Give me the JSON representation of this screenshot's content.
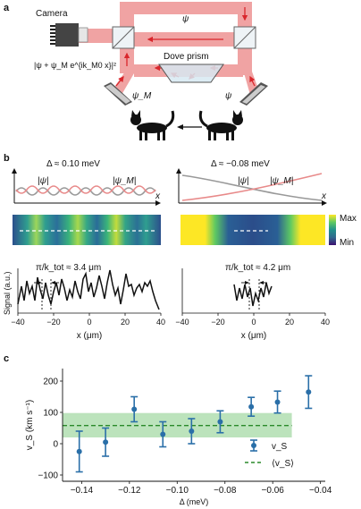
{
  "panel_a": {
    "label": "a",
    "camera_label": "Camera",
    "camera_formula": "|ψ + ψ_M e^{ik_M0 x}|²",
    "psi_label": "ψ",
    "psi_m_label": "ψ_M",
    "dove_prism_label": "Dove prism",
    "colors": {
      "beam": "#f0a3a3",
      "arrow": "#d9262c"
    },
    "icons": [
      "camera-icon",
      "beam-splitter",
      "mirror",
      "dove-prism",
      "cat-left-icon",
      "cat-right-icon"
    ]
  },
  "panel_b": {
    "label": "b",
    "left": {
      "delta_label": "Δ ≈ 0.10 meV",
      "psi_label": "|ψ|",
      "psi_m_label": "|ψ_M|",
      "x_label": "x",
      "annotation": "π/k_tot ≈ 3.4 μm"
    },
    "right": {
      "delta_label": "Δ ≈ −0.08 meV",
      "psi_label": "|ψ|",
      "psi_m_label": "|ψ_M|",
      "x_label": "x",
      "annotation": "π/k_tot ≈ 4.2 μm"
    },
    "colorbar": {
      "max_label": "Max",
      "min_label": "Min"
    },
    "signal_ylabel": "Signal (a.u.)",
    "xlabel": "x (μm)",
    "xticks": [
      "−40",
      "−20",
      "0",
      "20",
      "40"
    ]
  },
  "panel_c": {
    "label": "c",
    "chart_data": {
      "type": "scatter",
      "xlabel": "Δ (meV)",
      "ylabel": "v_S (km s⁻¹)",
      "xlim": [
        -0.148,
        -0.038
      ],
      "ylim": [
        -120,
        240
      ],
      "xticks": [
        -0.14,
        -0.12,
        -0.1,
        -0.08,
        -0.06,
        -0.04
      ],
      "xtick_labels": [
        "−0.14",
        "−0.12",
        "−0.10",
        "−0.08",
        "−0.06",
        "−0.04"
      ],
      "yticks": [
        -100,
        0,
        100,
        200
      ],
      "ytick_labels": [
        "−100",
        "0",
        "100",
        "200"
      ],
      "series": [
        {
          "name": "v_S",
          "color": "#2a6fa8",
          "points": [
            {
              "x": -0.141,
              "y": -25,
              "err": 65
            },
            {
              "x": -0.13,
              "y": 5,
              "err": 45
            },
            {
              "x": -0.118,
              "y": 110,
              "err": 40
            },
            {
              "x": -0.106,
              "y": 30,
              "err": 40
            },
            {
              "x": -0.094,
              "y": 40,
              "err": 40
            },
            {
              "x": -0.082,
              "y": 70,
              "err": 35
            },
            {
              "x": -0.069,
              "y": 118,
              "err": 30
            },
            {
              "x": -0.058,
              "y": 133,
              "err": 35
            },
            {
              "x": -0.045,
              "y": 165,
              "err": 52
            }
          ]
        }
      ],
      "mean": {
        "name": "⟨v_S⟩",
        "value": 58,
        "band": [
          20,
          98
        ],
        "color": "#2a8a2a",
        "band_color": "#9fd79f"
      },
      "legend_position": "lower-right"
    }
  }
}
